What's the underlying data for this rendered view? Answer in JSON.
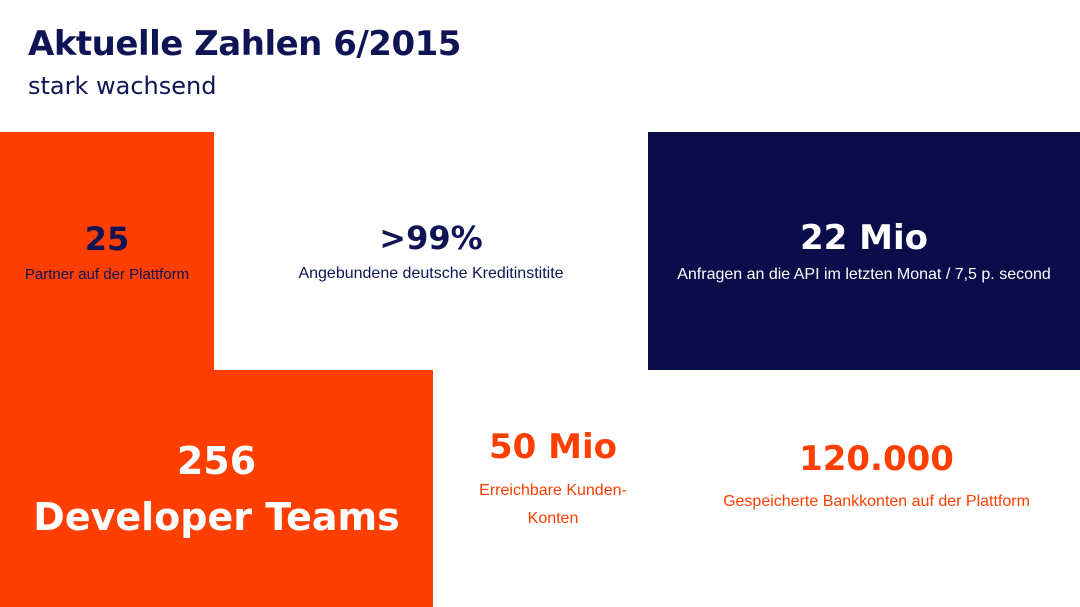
{
  "header": {
    "title": "Aktuelle Zahlen 6/2015",
    "subtitle": "stark wachsend"
  },
  "stats": {
    "partners": {
      "value": "25",
      "label": "Partner auf der Plattform"
    },
    "banks": {
      "value": ">99%",
      "label": "Angebundene deutsche Kreditinstitite"
    },
    "api": {
      "value": "22 Mio",
      "label": "Anfragen an die API im letzten Monat / 7,5 p. second"
    },
    "developers": {
      "value_line1": "256",
      "value_line2": "Developer Teams"
    },
    "customers": {
      "value": "50 Mio",
      "label_line1": "Erreichbare Kunden-",
      "label_line2": "Konten"
    },
    "accounts": {
      "value": "120.000",
      "label": "Gespeicherte Bankkonten auf der Plattform"
    }
  },
  "colors": {
    "accent_orange": "#ff3e00",
    "navy": "#0b0d4a",
    "text_navy": "#0f1455",
    "background": "#ffffff"
  }
}
